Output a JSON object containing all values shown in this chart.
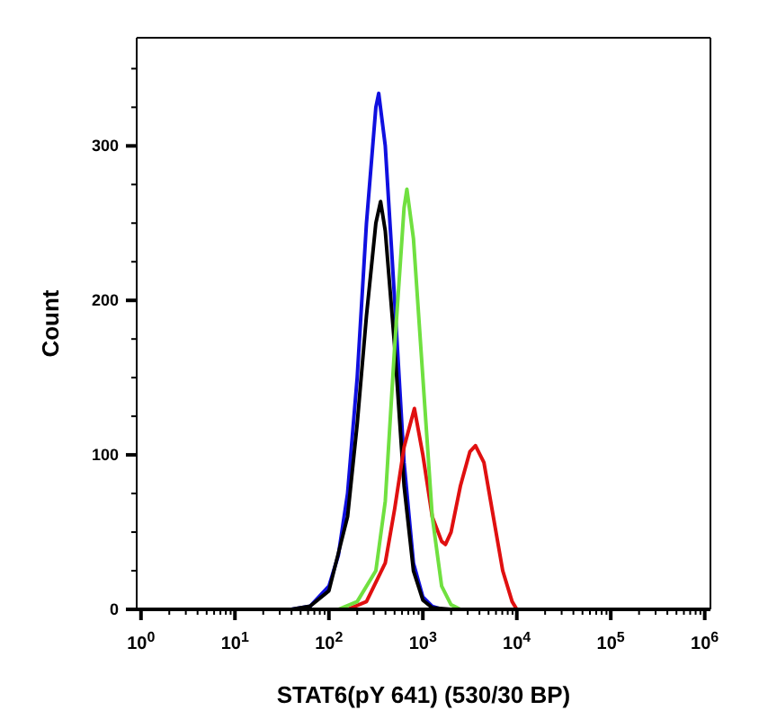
{
  "chart_data": {
    "type": "line",
    "xlabel": "STAT6(pY 641) (530/30 BP)",
    "ylabel": "Count",
    "log": "x",
    "marker": "none",
    "line_style": "solid",
    "xlim": [
      0.9,
      1150000
    ],
    "ylim": [
      0,
      370
    ],
    "xticks": [
      {
        "value": 1,
        "label": "10$^{0}$"
      },
      {
        "value": 2,
        "label": null
      },
      {
        "value": 3,
        "label": null
      },
      {
        "value": 4,
        "label": null
      },
      {
        "value": 5,
        "label": null
      },
      {
        "value": 6,
        "label": null
      },
      {
        "value": 7,
        "label": null
      },
      {
        "value": 8,
        "label": null
      },
      {
        "value": 9,
        "label": null
      },
      {
        "value": 10,
        "label": "10$^{1}$"
      },
      {
        "value": 20,
        "label": null
      },
      {
        "value": 30,
        "label": null
      },
      {
        "value": 40,
        "label": null
      },
      {
        "value": 50,
        "label": null
      },
      {
        "value": 60,
        "label": null
      },
      {
        "value": 70,
        "label": null
      },
      {
        "value": 80,
        "label": null
      },
      {
        "value": 90,
        "label": null
      },
      {
        "value": 100,
        "label": "10$^{2}$"
      },
      {
        "value": 200,
        "label": null
      },
      {
        "value": 300,
        "label": null
      },
      {
        "value": 400,
        "label": null
      },
      {
        "value": 500,
        "label": null
      },
      {
        "value": 600,
        "label": null
      },
      {
        "value": 700,
        "label": null
      },
      {
        "value": 800,
        "label": null
      },
      {
        "value": 900,
        "label": null
      },
      {
        "value": 1000,
        "label": "10$^{3}$"
      },
      {
        "value": 2000,
        "label": null
      },
      {
        "value": 3000,
        "label": null
      },
      {
        "value": 4000,
        "label": null
      },
      {
        "value": 5000,
        "label": null
      },
      {
        "value": 6000,
        "label": null
      },
      {
        "value": 7000,
        "label": null
      },
      {
        "value": 8000,
        "label": null
      },
      {
        "value": 9000,
        "label": null
      },
      {
        "value": 10000,
        "label": "10$^{4}$"
      },
      {
        "value": 20000,
        "label": null
      },
      {
        "value": 30000,
        "label": null
      },
      {
        "value": 40000,
        "label": null
      },
      {
        "value": 50000,
        "label": null
      },
      {
        "value": 60000,
        "label": null
      },
      {
        "value": 70000,
        "label": null
      },
      {
        "value": 80000,
        "label": null
      },
      {
        "value": 90000,
        "label": null
      },
      {
        "value": 100000,
        "label": "10$^{5}$"
      },
      {
        "value": 200000,
        "label": null
      },
      {
        "value": 300000,
        "label": null
      },
      {
        "value": 400000,
        "label": null
      },
      {
        "value": 500000,
        "label": null
      },
      {
        "value": 600000,
        "label": null
      },
      {
        "value": 700000,
        "label": null
      },
      {
        "value": 800000,
        "label": null
      },
      {
        "value": 900000,
        "label": null
      },
      {
        "value": 1000000,
        "label": "10$^{6}$"
      }
    ],
    "yticks": [
      0,
      {
        "value": 25,
        "label": null
      },
      {
        "value": 50,
        "label": null
      },
      {
        "value": 75,
        "label": null
      },
      100,
      {
        "value": 125,
        "label": null
      },
      {
        "value": 150,
        "label": null
      },
      {
        "value": 175,
        "label": null
      },
      200,
      {
        "value": 225,
        "label": null
      },
      {
        "value": 250,
        "label": null
      },
      {
        "value": 275,
        "label": null
      },
      300,
      {
        "value": 325,
        "label": null
      },
      {
        "value": 350,
        "label": null
      }
    ],
    "series": [
      {
        "color": "#1010e0",
        "x": [
          1,
          40,
          63,
          100,
          126,
          158,
          200,
          251,
          316,
          339,
          398,
          501,
          631,
          794,
          1000,
          1259,
          1585
        ],
        "values": [
          0,
          0,
          2,
          15,
          35,
          75,
          150,
          250,
          325,
          334,
          300,
          200,
          95,
          30,
          8,
          2,
          0
        ]
      },
      {
        "color": "#000000",
        "x": [
          40,
          63,
          100,
          158,
          200,
          251,
          316,
          355,
          398,
          501,
          631,
          794,
          1000,
          1259,
          1995
        ],
        "values": [
          0,
          2,
          12,
          60,
          120,
          190,
          250,
          264,
          245,
          170,
          80,
          25,
          6,
          1,
          0
        ]
      },
      {
        "color": "#e01010",
        "x": [
          158,
          251,
          398,
          501,
          631,
          813,
          1000,
          1259,
          1585,
          1738,
          1995,
          2512,
          3162,
          3631,
          4467,
          5623,
          7079,
          8913,
          10000
        ],
        "values": [
          0,
          5,
          30,
          65,
          105,
          130,
          100,
          60,
          44,
          42,
          50,
          80,
          102,
          106,
          95,
          60,
          25,
          5,
          0
        ]
      },
      {
        "color": "#70e040",
        "x": [
          1,
          126,
          200,
          316,
          398,
          501,
          631,
          676,
          794,
          1000,
          1259,
          1585,
          1995,
          2512,
          1000000
        ],
        "values": [
          0,
          0,
          5,
          25,
          70,
          170,
          260,
          272,
          240,
          150,
          60,
          15,
          3,
          0,
          0
        ]
      }
    ]
  }
}
